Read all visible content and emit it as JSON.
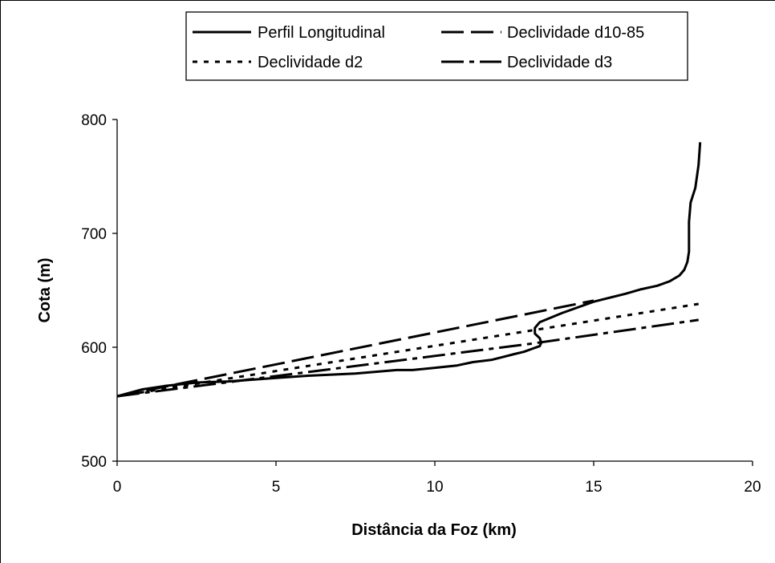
{
  "chart_data": {
    "type": "line",
    "title": "",
    "xlabel": "Distância da Foz (km)",
    "ylabel": "Cota (m)",
    "xlim": [
      0,
      20
    ],
    "ylim": [
      500,
      800
    ],
    "xticks": [
      0,
      5,
      10,
      15,
      20
    ],
    "yticks": [
      500,
      600,
      700,
      800
    ],
    "xtick_labels": [
      "0",
      "5",
      "10",
      "15",
      "20"
    ],
    "ytick_labels": [
      "500",
      "600",
      "700",
      "800"
    ],
    "grid": false,
    "legend_position": "top",
    "series": [
      {
        "name": "Perfil Longitudinal",
        "style": "solid",
        "color": "#000000",
        "points": [
          [
            0,
            557
          ],
          [
            0.8,
            563
          ],
          [
            1.5,
            566
          ],
          [
            2.5,
            569
          ],
          [
            3.5,
            570
          ],
          [
            5,
            573
          ],
          [
            6,
            575
          ],
          [
            7.5,
            577
          ],
          [
            8.8,
            580
          ],
          [
            9.3,
            580
          ],
          [
            10,
            582
          ],
          [
            10.7,
            584
          ],
          [
            11.2,
            587
          ],
          [
            11.8,
            589
          ],
          [
            12.5,
            594
          ],
          [
            12.8,
            596
          ],
          [
            13.1,
            599
          ],
          [
            13.3,
            601
          ],
          [
            13.35,
            604
          ],
          [
            13.3,
            608
          ],
          [
            13.15,
            612
          ],
          [
            13.15,
            617
          ],
          [
            13.3,
            622
          ],
          [
            14,
            630
          ],
          [
            15,
            640
          ],
          [
            16,
            647
          ],
          [
            16.5,
            651
          ],
          [
            17,
            654
          ],
          [
            17.4,
            658
          ],
          [
            17.7,
            663
          ],
          [
            17.85,
            668
          ],
          [
            17.95,
            675
          ],
          [
            18,
            684
          ],
          [
            18,
            710
          ],
          [
            18.05,
            727
          ],
          [
            18.2,
            740
          ],
          [
            18.3,
            760
          ],
          [
            18.35,
            780
          ]
        ]
      },
      {
        "name": "Declividade d10-85",
        "style": "long-dash",
        "color": "#000000",
        "points": [
          [
            0,
            557
          ],
          [
            15,
            641
          ]
        ]
      },
      {
        "name": "Declividade d2",
        "style": "dotted",
        "color": "#000000",
        "points": [
          [
            0,
            557
          ],
          [
            18.3,
            638
          ]
        ]
      },
      {
        "name": "Declividade d3",
        "style": "dash-dot",
        "color": "#000000",
        "points": [
          [
            0,
            557
          ],
          [
            13,
            603
          ],
          [
            18.3,
            624
          ]
        ]
      }
    ]
  }
}
